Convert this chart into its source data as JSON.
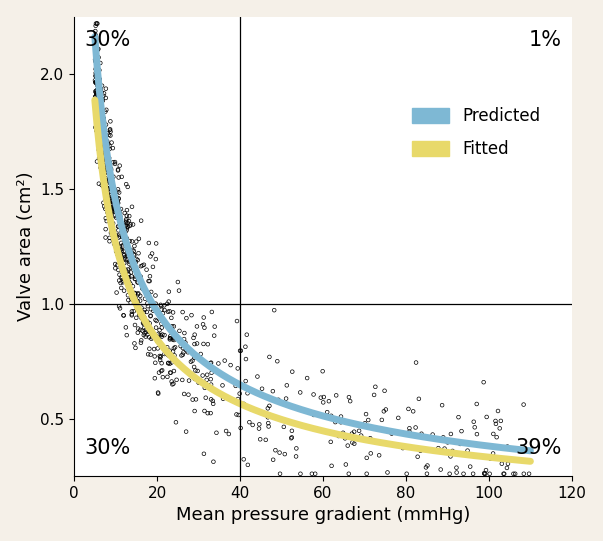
{
  "title": "",
  "xlabel": "Mean pressure gradient (mmHg)",
  "ylabel": "Valve area (cm²)",
  "xlim": [
    0,
    120
  ],
  "ylim": [
    0.25,
    2.25
  ],
  "xticks": [
    0,
    20,
    40,
    60,
    80,
    100,
    120
  ],
  "yticks": [
    0.5,
    1.0,
    1.5,
    2.0
  ],
  "vline_x": 40,
  "hline_y": 1.0,
  "quadrant_labels": {
    "top_left": "30%",
    "top_right": "1%",
    "bottom_left": "30%",
    "bottom_right": "39%"
  },
  "predicted_color": "#7eb8d4",
  "fitted_color": "#e8d96a",
  "scatter_color": "black",
  "scatter_size": 7,
  "background_color": "#f5f0e8",
  "plot_bg_color": "#ffffff",
  "n_points": 943,
  "seed": 42,
  "curve_lw": 5,
  "xlabel_fontsize": 13,
  "ylabel_fontsize": 13,
  "tick_fontsize": 11,
  "quadrant_fontsize": 15,
  "legend_fontsize": 12,
  "predicted_a": 5.5,
  "predicted_b": 0.58,
  "fitted_a": 4.8,
  "fitted_b": 0.58
}
